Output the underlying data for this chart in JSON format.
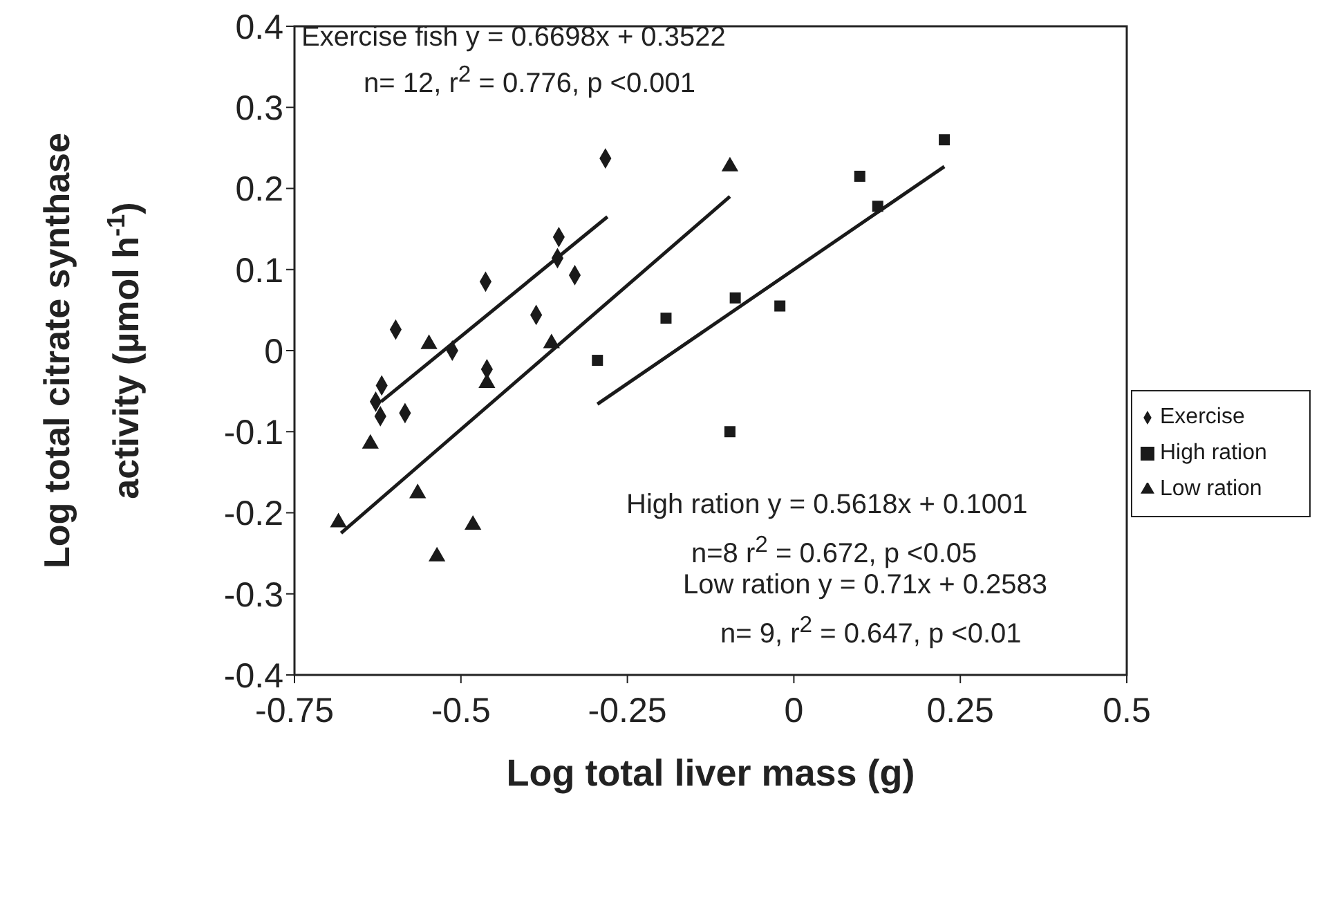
{
  "chart_data": {
    "type": "scatter",
    "xlabel": "Log total liver mass (g)",
    "ylabel": "Log total citrate synthase activity (µmol h$^{-1}$)",
    "xlim": [
      -0.75,
      0.5
    ],
    "xticks": [
      -0.75,
      -0.5,
      -0.25,
      0,
      0.25,
      0.5
    ],
    "ylim": [
      -0.4,
      0.4
    ],
    "yticks": [
      -0.4,
      -0.3,
      -0.2,
      -0.1,
      0,
      0.1,
      0.2,
      0.3,
      0.4
    ],
    "grid": false,
    "legend": "right",
    "series": [
      {
        "name": "Exercise",
        "color": "#1a1a1a",
        "marker": "diamond",
        "x": [
          -0.283,
          -0.353,
          -0.355,
          -0.329,
          -0.463,
          -0.387,
          -0.598,
          -0.513,
          -0.461,
          -0.619,
          -0.628,
          -0.621,
          -0.584
        ],
        "values": [
          0.237,
          0.14,
          0.114,
          0.093,
          0.085,
          0.044,
          0.026,
          0.0,
          -0.023,
          -0.043,
          -0.063,
          -0.081,
          -0.077
        ]
      },
      {
        "name": "High ration",
        "color": "#1a1a1a",
        "marker": "square",
        "x": [
          0.226,
          0.099,
          0.126,
          -0.088,
          -0.021,
          -0.192,
          -0.295,
          -0.096
        ],
        "values": [
          0.26,
          0.215,
          0.178,
          0.065,
          0.055,
          0.04,
          -0.012,
          -0.1
        ]
      },
      {
        "name": "Low ration",
        "color": "#1a1a1a",
        "marker": "triangle",
        "x": [
          -0.548,
          -0.461,
          -0.364,
          -0.636,
          -0.565,
          -0.482,
          -0.536,
          -0.684,
          -0.096
        ],
        "values": [
          0.008,
          -0.04,
          0.009,
          -0.115,
          -0.176,
          -0.215,
          -0.254,
          -0.212,
          0.227
        ]
      },
      {
        "type": "line",
        "color": "#1a1a1a",
        "marker": "none",
        "x": [
          -0.62,
          -0.28
        ],
        "values": [
          -0.063,
          0.165
        ]
      },
      {
        "type": "line",
        "color": "#1a1a1a",
        "marker": "none",
        "x": [
          -0.295,
          0.226
        ],
        "values": [
          -0.066,
          0.227
        ]
      },
      {
        "type": "line",
        "color": "#1a1a1a",
        "marker": "none",
        "x": [
          -0.68,
          -0.096
        ],
        "values": [
          -0.225,
          0.19
        ]
      }
    ],
    "annotations": [
      "Exercise fish y = 0.6698x + 0.3522",
      "n= 12, r$^{2}$ = 0.776, p <0.001",
      "High ration y = 0.5618x + 0.1001",
      "n=8 r$^{2}$ = 0.672, p <0.05",
      "Low ration y = 0.71x + 0.2583",
      "n= 9, r$^{2}$ = 0.647, p <0.01"
    ]
  }
}
